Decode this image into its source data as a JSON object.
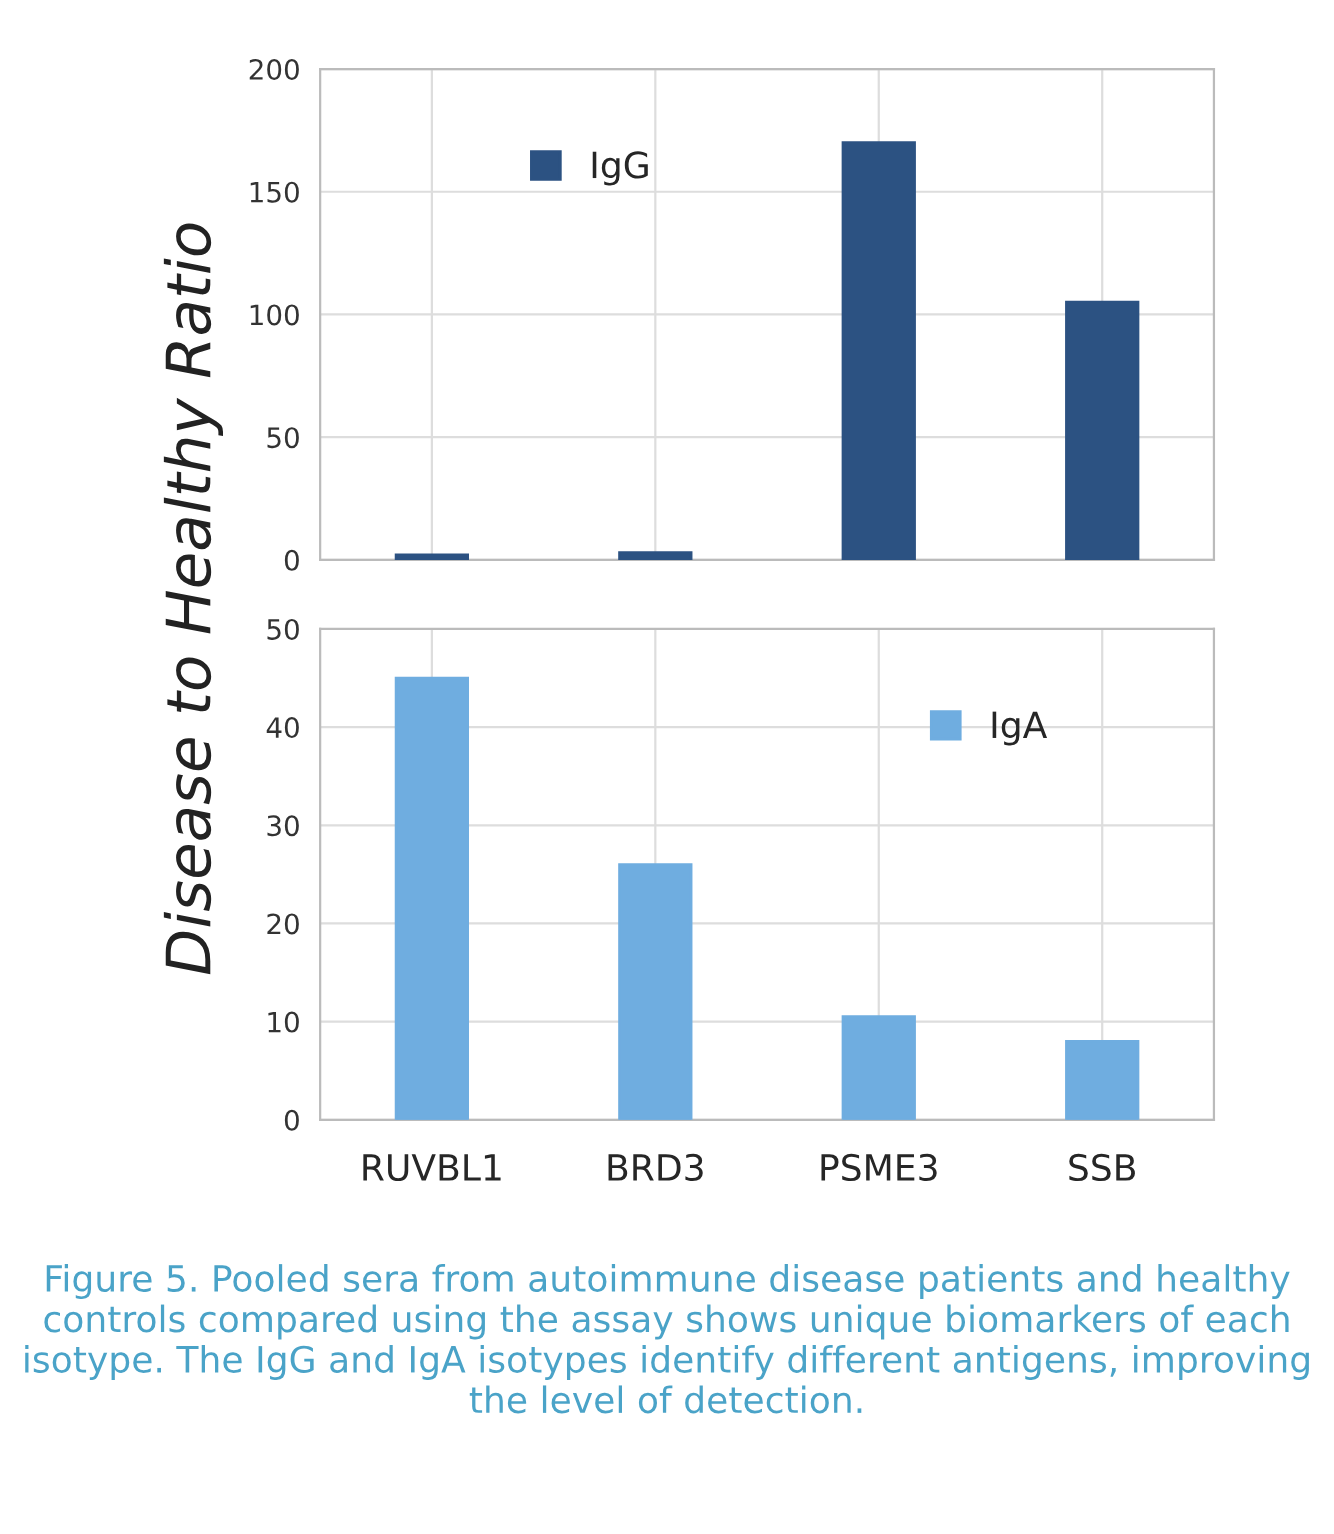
{
  "chart_data": [
    {
      "type": "bar",
      "ylabel": "Disease to Healthy Ratio",
      "categories": [
        null,
        null,
        null,
        null
      ],
      "series": [
        {
          "name": "IgG",
          "color": "#2c5282",
          "values": [
            2,
            3,
            170,
            105
          ]
        }
      ],
      "ylim": [
        0,
        200
      ],
      "yticks": [
        0,
        50,
        100,
        150,
        200
      ],
      "grid": true,
      "legend": "top left",
      "tick_labels": "y"
    },
    {
      "type": "bar",
      "categories": [
        "RUVBL1",
        "BRD3",
        "PSME3",
        "SSB"
      ],
      "series": [
        {
          "name": "IgA",
          "color": "#6fade0",
          "values": [
            45,
            26,
            10.5,
            8
          ]
        }
      ],
      "ylim": [
        0,
        50
      ],
      "yticks": [
        0,
        10,
        20,
        30,
        40,
        50
      ],
      "grid": true,
      "legend": "top right",
      "annotations": [
        "Figure 5. Pooled sera from autoimmune disease patients and healthy controls compared using the assay shows unique biomarkers of each isotype. The IgG and IgA isotypes identify different antigens, improving the level of detection."
      ]
    }
  ]
}
